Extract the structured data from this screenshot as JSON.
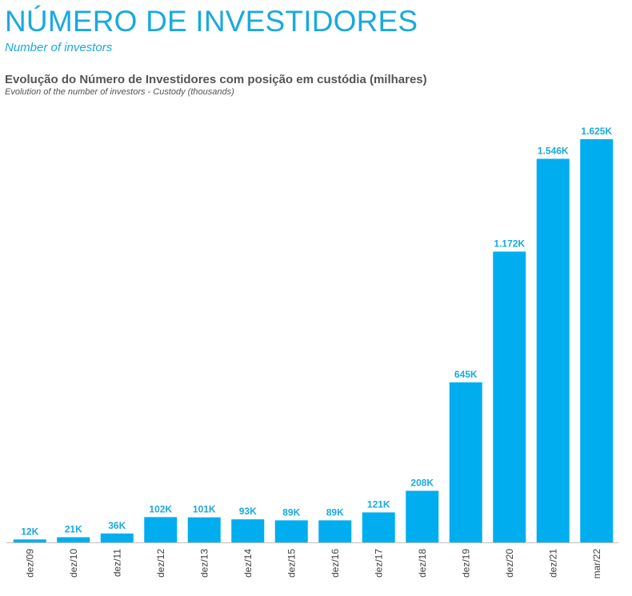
{
  "header": {
    "title": "NÚMERO DE INVESTIDORES",
    "subtitle": "Number of investors"
  },
  "chart_data": {
    "type": "bar",
    "title": "Evolução do Número de Investidores com posição em custódia (milhares)",
    "subtitle": "Evolution of the number of investors - Custody (thousands)",
    "categories": [
      "dez/09",
      "dez/10",
      "dez/11",
      "dez/12",
      "dez/13",
      "dez/14",
      "dez/15",
      "dez/16",
      "dez/17",
      "dez/18",
      "dez/19",
      "dez/20",
      "dez/21",
      "mar/22"
    ],
    "values": [
      12,
      21,
      36,
      102,
      101,
      93,
      89,
      89,
      121,
      208,
      645,
      1172,
      1546,
      1625
    ],
    "labels": [
      "12K",
      "21K",
      "36K",
      "102K",
      "101K",
      "93K",
      "89K",
      "89K",
      "121K",
      "208K",
      "645K",
      "1.172K",
      "1.546K",
      "1.625K"
    ],
    "ylim": [
      0,
      1625
    ],
    "xlabel": "",
    "ylabel": "",
    "grid": false,
    "bar_color": "#00aeef",
    "label_color": "#1aa9e0"
  }
}
